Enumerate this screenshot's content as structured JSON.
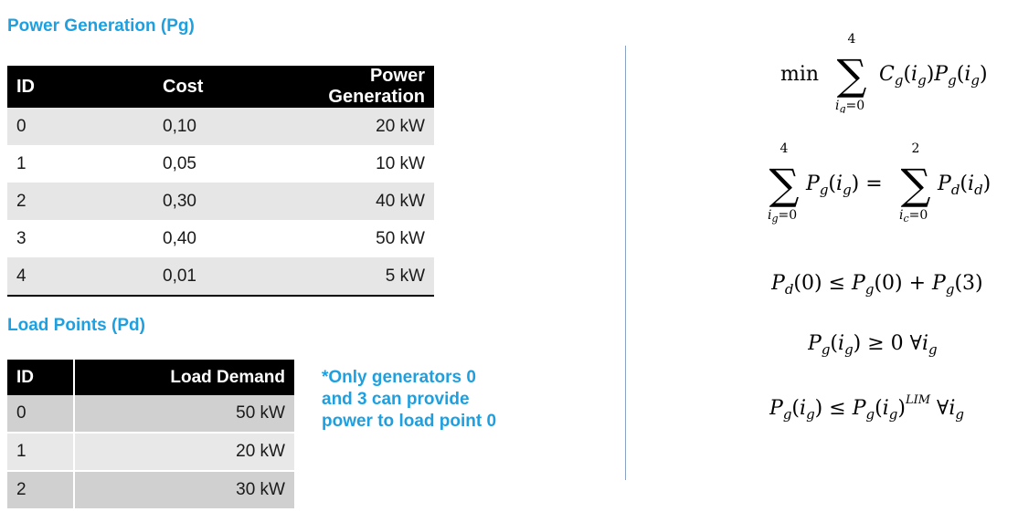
{
  "generation": {
    "heading": "Power Generation (Pg)",
    "columns": [
      "ID",
      "Cost",
      "Power Generation"
    ],
    "rows": [
      [
        "0",
        "0,10",
        "20 kW"
      ],
      [
        "1",
        "0,05",
        "10 kW"
      ],
      [
        "2",
        "0,30",
        "40 kW"
      ],
      [
        "3",
        "0,40",
        "50 kW"
      ],
      [
        "4",
        "0,01",
        "5 kW"
      ]
    ]
  },
  "load": {
    "heading": "Load Points (Pd)",
    "columns": [
      "ID",
      "Load Demand"
    ],
    "rows": [
      [
        "0",
        "50 kW"
      ],
      [
        "1",
        "20 kW"
      ],
      [
        "2",
        "30 kW"
      ]
    ]
  },
  "note": {
    "line1": "*Only generators 0",
    "line2": "and 3 can provide",
    "line3": "power to load point 0"
  },
  "formulas": {
    "f1": {
      "op": "min",
      "upper": "4",
      "lower": "i_g=0",
      "lower_text": "i",
      "lower_sub": "g",
      "lower_rest": "=0",
      "body": "C_g(i_g)P_g(i_g)"
    },
    "f2": {
      "upper1": "4",
      "lower1_text": "i",
      "lower1_sub": "g",
      "lower1_rest": "=0",
      "upper2": "2",
      "lower2_text": "i",
      "lower2_sub": "c",
      "lower2_rest": "=0"
    },
    "f3": "P_d(0) ≤ P_g(0) + P_g(3)",
    "f4": "P_g(i_g) ≥ 0  ∀i_g",
    "f5": "P_g(i_g) ≤ P_g(i_g)^LIM  ∀i_g",
    "f5_sup": "LIM"
  }
}
